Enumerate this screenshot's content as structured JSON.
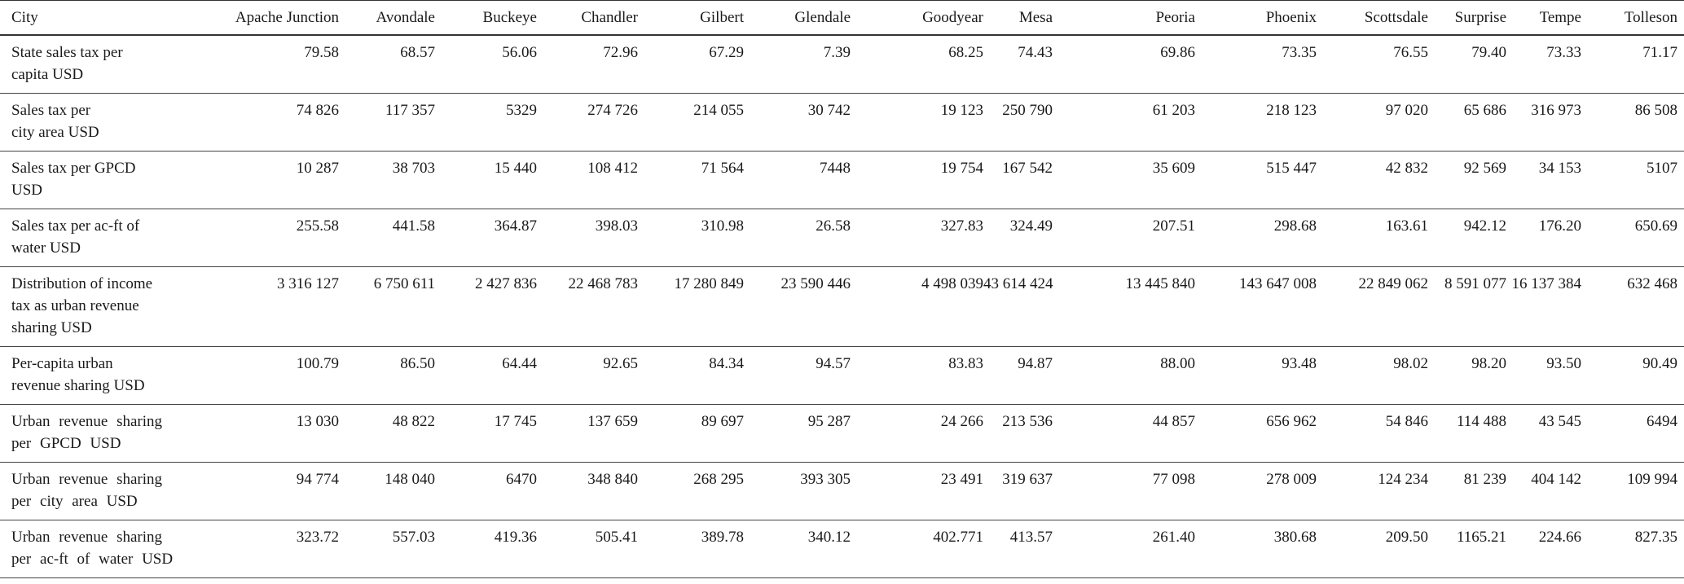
{
  "table": {
    "header_label": "City",
    "cities": [
      "Apache Junction",
      "Avondale",
      "Buckeye",
      "Chandler",
      "Gilbert",
      "Glendale",
      "Goodyear",
      "Mesa",
      "Peoria",
      "Phoenix",
      "Scottsdale",
      "Surprise",
      "Tempe",
      "Tolleson"
    ],
    "rows": [
      {
        "label": "State sales tax per\ncapita USD",
        "values": [
          "79.58",
          "68.57",
          "56.06",
          "72.96",
          "67.29",
          "7.39",
          "68.25",
          "74.43",
          "69.86",
          "73.35",
          "76.55",
          "79.40",
          "73.33",
          "71.17"
        ]
      },
      {
        "label": "Sales tax per\ncity area USD",
        "values": [
          "74 826",
          "117 357",
          "5329",
          "274 726",
          "214 055",
          "30 742",
          "19 123",
          "250 790",
          "61 203",
          "218 123",
          "97 020",
          "65 686",
          "316 973",
          "86 508"
        ]
      },
      {
        "label": "Sales tax per GPCD\nUSD",
        "values": [
          "10 287",
          "38 703",
          "15 440",
          "108 412",
          "71 564",
          "7448",
          "19 754",
          "167 542",
          "35 609",
          "515 447",
          "42 832",
          "92 569",
          "34 153",
          "5107"
        ]
      },
      {
        "label": "Sales tax per ac-ft of\nwater USD",
        "values": [
          "255.58",
          "441.58",
          "364.87",
          "398.03",
          "310.98",
          "26.58",
          "327.83",
          "324.49",
          "207.51",
          "298.68",
          "163.61",
          "942.12",
          "176.20",
          "650.69"
        ]
      },
      {
        "label": "Distribution of income\ntax as urban revenue\nsharing USD",
        "values": [
          "3 316 127",
          "6 750 611",
          "2 427 836",
          "22 468 783",
          "17 280 849",
          "23 590 446",
          "4 498 039",
          "43 614 424",
          "13 445 840",
          "143 647 008",
          "22 849 062",
          "8 591 077",
          "16 137 384",
          "632 468"
        ]
      },
      {
        "label": "Per-capita urban\nrevenue sharing USD",
        "values": [
          "100.79",
          "86.50",
          "64.44",
          "92.65",
          "84.34",
          "94.57",
          "83.83",
          "94.87",
          "88.00",
          "93.48",
          "98.02",
          "98.20",
          "93.50",
          "90.49"
        ]
      },
      {
        "label": "Urban revenue sharing\nper GPCD USD",
        "values": [
          "13 030",
          "48 822",
          "17 745",
          "137 659",
          "89 697",
          "95 287",
          "24 266",
          "213 536",
          "44 857",
          "656 962",
          "54 846",
          "114 488",
          "43 545",
          "6494"
        ]
      },
      {
        "label": "Urban revenue sharing\nper city area USD",
        "values": [
          "94 774",
          "148 040",
          "6470",
          "348 840",
          "268 295",
          "393 305",
          "23 491",
          "319 637",
          "77 098",
          "278 009",
          "124 234",
          "81 239",
          "404 142",
          "109 994"
        ]
      },
      {
        "label": "Urban revenue sharing\nper ac-ft of water USD",
        "values": [
          "323.72",
          "557.03",
          "419.36",
          "505.41",
          "389.78",
          "340.12",
          "402.771",
          "413.57",
          "261.40",
          "380.68",
          "209.50",
          "1165.21",
          "224.66",
          "827.35"
        ]
      }
    ]
  }
}
